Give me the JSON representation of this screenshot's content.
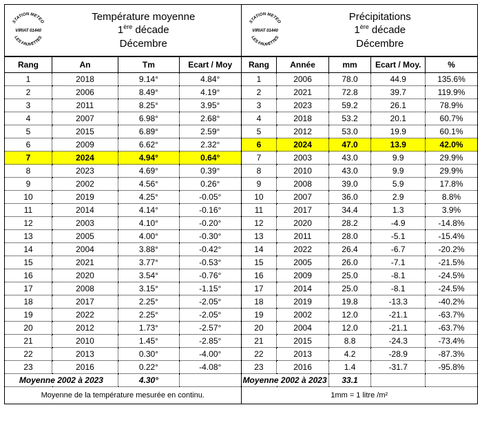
{
  "highlight_background": "#ffff00",
  "left": {
    "title_line1": "Température moyenne",
    "title_line2a": "1",
    "title_line2sup": "ère",
    "title_line2b": " décade",
    "title_line3": "Décembre",
    "columns": [
      "Rang",
      "An",
      "Tm",
      "Ecart / Moy"
    ],
    "highlight_rank": 7,
    "rows": [
      {
        "rang": "1",
        "an": "2018",
        "tm": "9.14°",
        "ec": "4.84°"
      },
      {
        "rang": "2",
        "an": "2006",
        "tm": "8.49°",
        "ec": "4.19°"
      },
      {
        "rang": "3",
        "an": "2011",
        "tm": "8.25°",
        "ec": "3.95°"
      },
      {
        "rang": "4",
        "an": "2007",
        "tm": "6.98°",
        "ec": "2.68°"
      },
      {
        "rang": "5",
        "an": "2015",
        "tm": "6.89°",
        "ec": "2.59°"
      },
      {
        "rang": "6",
        "an": "2009",
        "tm": "6.62°",
        "ec": "2.32°"
      },
      {
        "rang": "7",
        "an": "2024",
        "tm": "4.94°",
        "ec": "0.64°"
      },
      {
        "rang": "8",
        "an": "2023",
        "tm": "4.69°",
        "ec": "0.39°"
      },
      {
        "rang": "9",
        "an": "2002",
        "tm": "4.56°",
        "ec": "0.26°"
      },
      {
        "rang": "10",
        "an": "2019",
        "tm": "4.25°",
        "ec": "-0.05°"
      },
      {
        "rang": "11",
        "an": "2014",
        "tm": "4.14°",
        "ec": "-0.16°"
      },
      {
        "rang": "12",
        "an": "2003",
        "tm": "4.10°",
        "ec": "-0.20°"
      },
      {
        "rang": "13",
        "an": "2005",
        "tm": "4.00°",
        "ec": "-0.30°"
      },
      {
        "rang": "14",
        "an": "2004",
        "tm": "3.88°",
        "ec": "-0.42°"
      },
      {
        "rang": "15",
        "an": "2021",
        "tm": "3.77°",
        "ec": "-0.53°"
      },
      {
        "rang": "16",
        "an": "2020",
        "tm": "3.54°",
        "ec": "-0.76°"
      },
      {
        "rang": "17",
        "an": "2008",
        "tm": "3.15°",
        "ec": "-1.15°"
      },
      {
        "rang": "18",
        "an": "2017",
        "tm": "2.25°",
        "ec": "-2.05°"
      },
      {
        "rang": "19",
        "an": "2022",
        "tm": "2.25°",
        "ec": "-2.05°"
      },
      {
        "rang": "20",
        "an": "2012",
        "tm": "1.73°",
        "ec": "-2.57°"
      },
      {
        "rang": "21",
        "an": "2010",
        "tm": "1.45°",
        "ec": "-2.85°"
      },
      {
        "rang": "22",
        "an": "2013",
        "tm": "0.30°",
        "ec": "-4.00°"
      },
      {
        "rang": "23",
        "an": "2016",
        "tm": "0.22°",
        "ec": "-4.08°"
      }
    ],
    "avg_label": "Moyenne 2002 à 2023",
    "avg_value": "4.30°",
    "footer": "Moyenne de la température mesurée en continu."
  },
  "right": {
    "title_line1": "Précipitations",
    "title_line2a": "1",
    "title_line2sup": "ère",
    "title_line2b": " décade",
    "title_line3": "Décembre",
    "columns": [
      "Rang",
      "Année",
      "mm",
      "Ecart / Moy.",
      "%"
    ],
    "highlight_rank": 6,
    "rows": [
      {
        "rang": "1",
        "an": "2006",
        "mm": "78.0",
        "ec": "44.9",
        "pc": "135.6%"
      },
      {
        "rang": "2",
        "an": "2021",
        "mm": "72.8",
        "ec": "39.7",
        "pc": "119.9%"
      },
      {
        "rang": "3",
        "an": "2023",
        "mm": "59.2",
        "ec": "26.1",
        "pc": "78.9%"
      },
      {
        "rang": "4",
        "an": "2018",
        "mm": "53.2",
        "ec": "20.1",
        "pc": "60.7%"
      },
      {
        "rang": "5",
        "an": "2012",
        "mm": "53.0",
        "ec": "19.9",
        "pc": "60.1%"
      },
      {
        "rang": "6",
        "an": "2024",
        "mm": "47.0",
        "ec": "13.9",
        "pc": "42.0%"
      },
      {
        "rang": "7",
        "an": "2003",
        "mm": "43.0",
        "ec": "9.9",
        "pc": "29.9%"
      },
      {
        "rang": "8",
        "an": "2010",
        "mm": "43.0",
        "ec": "9.9",
        "pc": "29.9%"
      },
      {
        "rang": "9",
        "an": "2008",
        "mm": "39.0",
        "ec": "5.9",
        "pc": "17.8%"
      },
      {
        "rang": "10",
        "an": "2007",
        "mm": "36.0",
        "ec": "2.9",
        "pc": "8.8%"
      },
      {
        "rang": "11",
        "an": "2017",
        "mm": "34.4",
        "ec": "1.3",
        "pc": "3.9%"
      },
      {
        "rang": "12",
        "an": "2020",
        "mm": "28.2",
        "ec": "-4.9",
        "pc": "-14.8%"
      },
      {
        "rang": "13",
        "an": "2011",
        "mm": "28.0",
        "ec": "-5.1",
        "pc": "-15.4%"
      },
      {
        "rang": "14",
        "an": "2022",
        "mm": "26.4",
        "ec": "-6.7",
        "pc": "-20.2%"
      },
      {
        "rang": "15",
        "an": "2005",
        "mm": "26.0",
        "ec": "-7.1",
        "pc": "-21.5%"
      },
      {
        "rang": "16",
        "an": "2009",
        "mm": "25.0",
        "ec": "-8.1",
        "pc": "-24.5%"
      },
      {
        "rang": "17",
        "an": "2014",
        "mm": "25.0",
        "ec": "-8.1",
        "pc": "-24.5%"
      },
      {
        "rang": "18",
        "an": "2019",
        "mm": "19.8",
        "ec": "-13.3",
        "pc": "-40.2%"
      },
      {
        "rang": "19",
        "an": "2002",
        "mm": "12.0",
        "ec": "-21.1",
        "pc": "-63.7%"
      },
      {
        "rang": "20",
        "an": "2004",
        "mm": "12.0",
        "ec": "-21.1",
        "pc": "-63.7%"
      },
      {
        "rang": "21",
        "an": "2015",
        "mm": "8.8",
        "ec": "-24.3",
        "pc": "-73.4%"
      },
      {
        "rang": "22",
        "an": "2013",
        "mm": "4.2",
        "ec": "-28.9",
        "pc": "-87.3%"
      },
      {
        "rang": "23",
        "an": "2016",
        "mm": "1.4",
        "ec": "-31.7",
        "pc": "-95.8%"
      }
    ],
    "avg_label": "Moyenne 2002 à 2023",
    "avg_value": "33.1",
    "footer": "1mm = 1 litre /m²"
  },
  "logo": {
    "line1": "STATION METEO",
    "line2": "VIRIAT 01440",
    "line3": "LES FAUVETTES"
  }
}
